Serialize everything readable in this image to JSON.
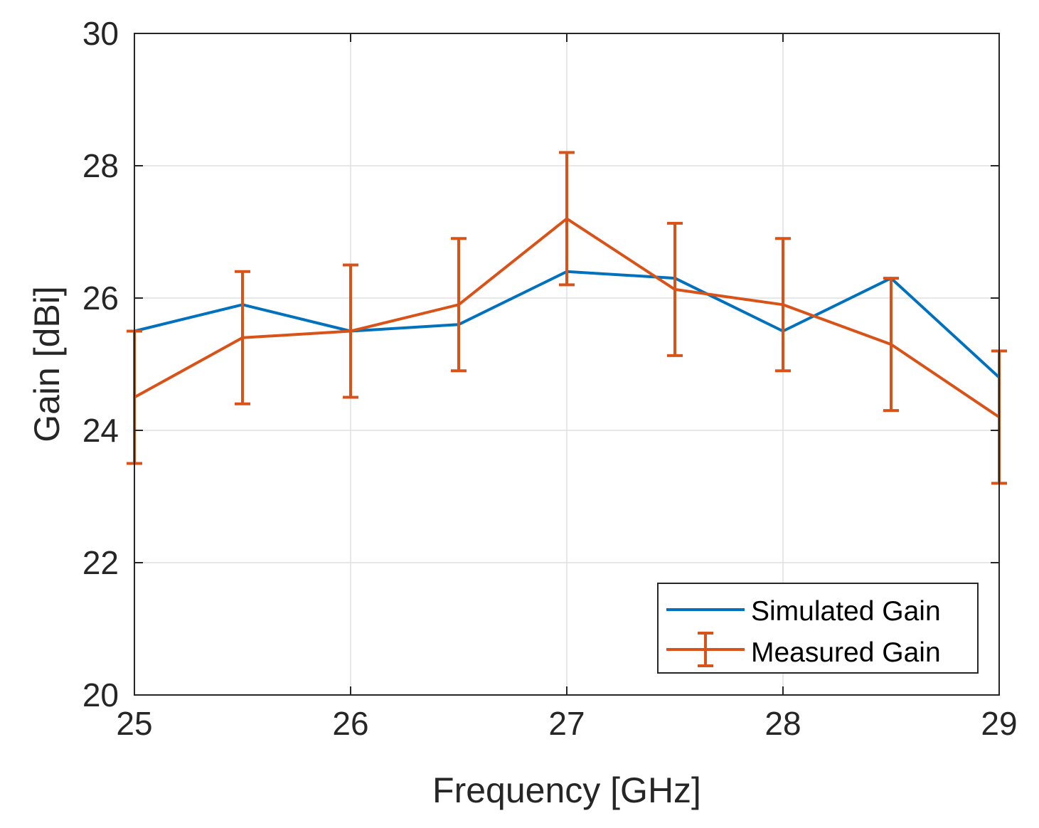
{
  "chart_data": {
    "type": "line",
    "title": "",
    "xlabel": "Frequency [GHz]",
    "ylabel": "Gain [dBi]",
    "xlim": [
      25,
      29
    ],
    "ylim": [
      20,
      30
    ],
    "x_ticks": [
      25,
      26,
      27,
      28,
      29
    ],
    "y_ticks": [
      20,
      22,
      24,
      26,
      28,
      30
    ],
    "x_tick_labels": [
      "25",
      "26",
      "27",
      "28",
      "29"
    ],
    "y_tick_labels": [
      "20",
      "22",
      "24",
      "26",
      "28",
      "30"
    ],
    "grid": true,
    "legend_position": "bottom-right",
    "x": [
      25,
      25.5,
      26,
      26.5,
      27,
      27.5,
      28,
      28.5,
      29
    ],
    "series": [
      {
        "name": "Simulated Gain",
        "color": "#0072BD",
        "values": [
          25.5,
          25.9,
          25.5,
          25.6,
          26.4,
          26.3,
          25.5,
          26.3,
          24.8
        ]
      },
      {
        "name": "Measured Gain",
        "color": "#D95319",
        "values": [
          24.5,
          25.4,
          25.5,
          25.9,
          27.2,
          26.13,
          25.9,
          25.3,
          24.2
        ],
        "error": [
          1.0,
          1.0,
          1.0,
          1.0,
          1.0,
          1.0,
          1.0,
          1.0,
          1.0
        ]
      }
    ]
  }
}
